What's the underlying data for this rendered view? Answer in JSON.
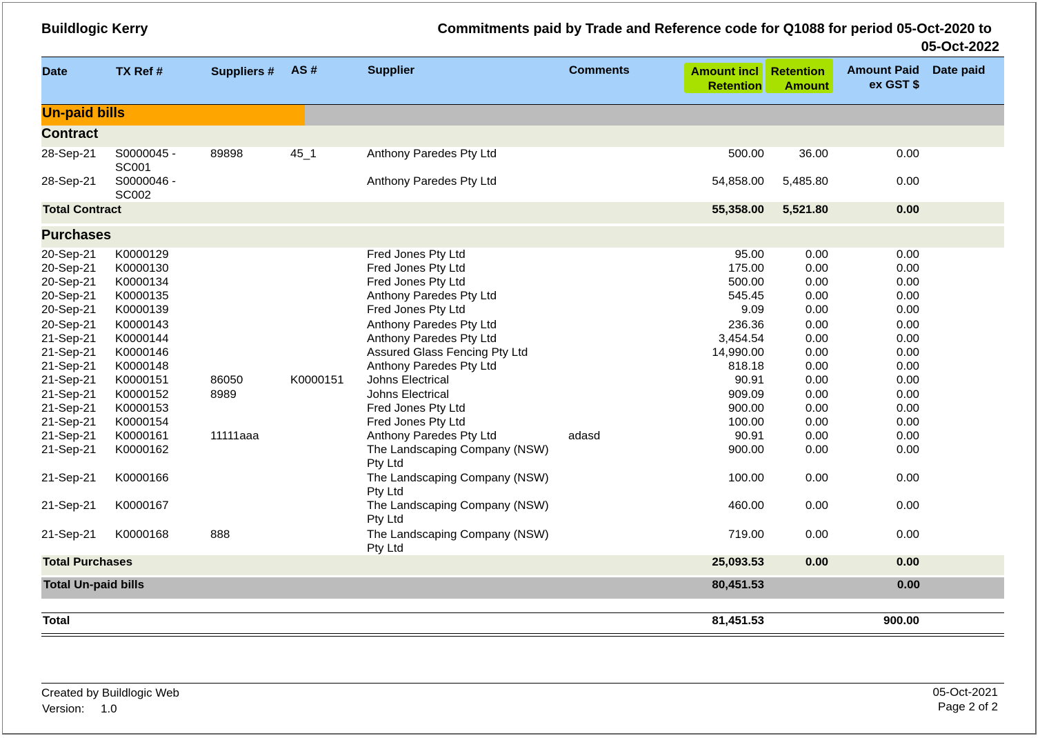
{
  "report": {
    "company": "Buildlogic Kerry",
    "title_line1": "Commitments paid by Trade and Reference code for Q1088 for period 05-Oct-2020 to",
    "title_line2": "05-Oct-2022"
  },
  "columns": {
    "date": "Date",
    "txref": "TX Ref #",
    "suppliers": "Suppliers #",
    "as": "AS #",
    "supplier": "Supplier",
    "comments": "Comments",
    "amount_incl_1": "Amount incl",
    "amount_incl_2": "Retention",
    "retention_1": "Retention",
    "retention_2": "Amount",
    "amount_paid_1": "Amount Paid",
    "amount_paid_2": "ex GST $",
    "date_paid": "Date paid"
  },
  "highlight_color": "#a8e000",
  "section": {
    "title": "Un-paid bills",
    "color": "#ffa500",
    "total_label": "Total Un-paid bills",
    "total_amount": "80,451.53",
    "total_paid": "0.00"
  },
  "contract": {
    "title": "Contract",
    "rows": [
      {
        "date": "28-Sep-21",
        "txref_1": "S0000045 -",
        "txref_2": "SC001",
        "suppliers": "89898",
        "as": "45_1",
        "supplier": "Anthony Paredes Pty Ltd",
        "supplier_2": "",
        "comments": "",
        "amount": "500.00",
        "retention": "36.00",
        "paid": "0.00"
      },
      {
        "date": "28-Sep-21",
        "txref_1": "S0000046 -",
        "txref_2": "SC002",
        "suppliers": "",
        "as": "",
        "supplier": "Anthony Paredes Pty Ltd",
        "supplier_2": "",
        "comments": "",
        "amount": "54,858.00",
        "retention": "5,485.80",
        "paid": "0.00"
      }
    ],
    "total_label": "Total Contract",
    "total_amount": "55,358.00",
    "total_retention": "5,521.80",
    "total_paid": "0.00"
  },
  "purchases": {
    "title": "Purchases",
    "rows": [
      {
        "date": "20-Sep-21",
        "txref_1": "K0000129",
        "txref_2": "",
        "suppliers": "",
        "as": "",
        "supplier": "Fred Jones Pty Ltd",
        "supplier_2": "",
        "comments": "",
        "amount": "95.00",
        "retention": "0.00",
        "paid": "0.00"
      },
      {
        "date": "20-Sep-21",
        "txref_1": "K0000130",
        "txref_2": "",
        "suppliers": "",
        "as": "",
        "supplier": "Fred Jones Pty Ltd",
        "supplier_2": "",
        "comments": "",
        "amount": "175.00",
        "retention": "0.00",
        "paid": "0.00"
      },
      {
        "date": "20-Sep-21",
        "txref_1": "K0000134",
        "txref_2": "",
        "suppliers": "",
        "as": "",
        "supplier": "Fred Jones Pty Ltd",
        "supplier_2": "",
        "comments": "",
        "amount": "500.00",
        "retention": "0.00",
        "paid": "0.00"
      },
      {
        "date": "20-Sep-21",
        "txref_1": "K0000135",
        "txref_2": "",
        "suppliers": "",
        "as": "",
        "supplier": "Anthony Paredes Pty Ltd",
        "supplier_2": "",
        "comments": "",
        "amount": "545.45",
        "retention": "0.00",
        "paid": "0.00"
      },
      {
        "date": "20-Sep-21",
        "txref_1": "K0000139",
        "txref_2": "",
        "suppliers": "",
        "as": "",
        "supplier": "Fred Jones Pty Ltd",
        "supplier_2": "",
        "comments": "",
        "amount": "9.09",
        "retention": "0.00",
        "paid": "0.00"
      },
      {
        "date": "20-Sep-21",
        "txref_1": "K0000143",
        "txref_2": "",
        "suppliers": "",
        "as": "",
        "supplier": "Anthony Paredes Pty Ltd",
        "supplier_2": "",
        "comments": "",
        "amount": "236.36",
        "retention": "0.00",
        "paid": "0.00"
      },
      {
        "date": "21-Sep-21",
        "txref_1": "K0000144",
        "txref_2": "",
        "suppliers": "",
        "as": "",
        "supplier": "Anthony Paredes Pty Ltd",
        "supplier_2": "",
        "comments": "",
        "amount": "3,454.54",
        "retention": "0.00",
        "paid": "0.00"
      },
      {
        "date": "21-Sep-21",
        "txref_1": "K0000146",
        "txref_2": "",
        "suppliers": "",
        "as": "",
        "supplier": "Assured Glass Fencing Pty Ltd",
        "supplier_2": "",
        "comments": "",
        "amount": "14,990.00",
        "retention": "0.00",
        "paid": "0.00"
      },
      {
        "date": "21-Sep-21",
        "txref_1": "K0000148",
        "txref_2": "",
        "suppliers": "",
        "as": "",
        "supplier": "Anthony Paredes Pty Ltd",
        "supplier_2": "",
        "comments": "",
        "amount": "818.18",
        "retention": "0.00",
        "paid": "0.00"
      },
      {
        "date": "21-Sep-21",
        "txref_1": "K0000151",
        "txref_2": "",
        "suppliers": "86050",
        "as": "K0000151",
        "supplier": "Johns Electrical",
        "supplier_2": "",
        "comments": "",
        "amount": "90.91",
        "retention": "0.00",
        "paid": "0.00"
      },
      {
        "date": "21-Sep-21",
        "txref_1": "K0000152",
        "txref_2": "",
        "suppliers": "8989",
        "as": "",
        "supplier": "Johns Electrical",
        "supplier_2": "",
        "comments": "",
        "amount": "909.09",
        "retention": "0.00",
        "paid": "0.00"
      },
      {
        "date": "21-Sep-21",
        "txref_1": "K0000153",
        "txref_2": "",
        "suppliers": "",
        "as": "",
        "supplier": "Fred Jones Pty Ltd",
        "supplier_2": "",
        "comments": "",
        "amount": "900.00",
        "retention": "0.00",
        "paid": "0.00"
      },
      {
        "date": "21-Sep-21",
        "txref_1": "K0000154",
        "txref_2": "",
        "suppliers": "",
        "as": "",
        "supplier": "Fred Jones Pty Ltd",
        "supplier_2": "",
        "comments": "",
        "amount": "100.00",
        "retention": "0.00",
        "paid": "0.00"
      },
      {
        "date": "21-Sep-21",
        "txref_1": "K0000161",
        "txref_2": "",
        "suppliers": "11111aaa",
        "as": "",
        "supplier": "Anthony Paredes Pty Ltd",
        "supplier_2": "",
        "comments": "adasd",
        "amount": "90.91",
        "retention": "0.00",
        "paid": "0.00"
      },
      {
        "date": "21-Sep-21",
        "txref_1": "K0000162",
        "txref_2": "",
        "suppliers": "",
        "as": "",
        "supplier": "The Landscaping Company (NSW)",
        "supplier_2": "Pty Ltd",
        "comments": "",
        "amount": "900.00",
        "retention": "0.00",
        "paid": "0.00"
      },
      {
        "date": "21-Sep-21",
        "txref_1": "K0000166",
        "txref_2": "",
        "suppliers": "",
        "as": "",
        "supplier": "The Landscaping Company (NSW)",
        "supplier_2": "Pty Ltd",
        "comments": "",
        "amount": "100.00",
        "retention": "0.00",
        "paid": "0.00"
      },
      {
        "date": "21-Sep-21",
        "txref_1": "K0000167",
        "txref_2": "",
        "suppliers": "",
        "as": "",
        "supplier": "The Landscaping Company (NSW)",
        "supplier_2": "Pty Ltd",
        "comments": "",
        "amount": "460.00",
        "retention": "0.00",
        "paid": "0.00"
      },
      {
        "date": "21-Sep-21",
        "txref_1": "K0000168",
        "txref_2": "",
        "suppliers": "888",
        "as": "",
        "supplier": "The Landscaping Company (NSW)",
        "supplier_2": "Pty Ltd",
        "comments": "",
        "amount": "719.00",
        "retention": "0.00",
        "paid": "0.00"
      }
    ],
    "total_label": "Total Purchases",
    "total_amount": "25,093.53",
    "total_retention": "0.00",
    "total_paid": "0.00"
  },
  "grand_total": {
    "label": "Total",
    "amount": "81,451.53",
    "paid": "900.00"
  },
  "footer": {
    "created_by": "Created by Buildlogic Web",
    "version_label": "Version:",
    "version": "1.0",
    "date": "05-Oct-2021",
    "page": "Page 2 of 2"
  }
}
